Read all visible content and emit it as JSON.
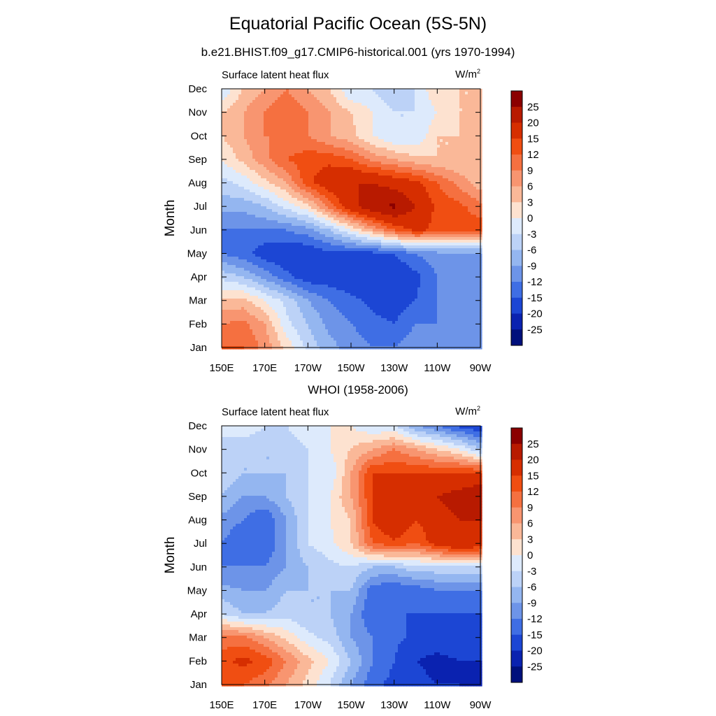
{
  "title": "Equatorial Pacific Ocean (5S-5N)",
  "subtitle": "b.e21.BHIST.f09_g17.CMIP6-historical.001 (yrs 1970-1994)",
  "chart_data": [
    {
      "type": "heatmap",
      "title": "",
      "left_label": "Surface latent heat flux",
      "unit_base": "W/m",
      "unit_sup": "2",
      "ylabel": "Month",
      "xlabel": "",
      "x_tick_labels": [
        "150E",
        "170E",
        "170W",
        "150W",
        "130W",
        "110W",
        "90W"
      ],
      "x_ticks_deg": [
        150,
        170,
        190,
        210,
        230,
        250,
        270
      ],
      "xlim_deg": [
        150,
        270
      ],
      "y_tick_labels": [
        "Jan",
        "Feb",
        "Mar",
        "Apr",
        "May",
        "Jun",
        "Jul",
        "Aug",
        "Sep",
        "Oct",
        "Nov",
        "Dec"
      ],
      "ylim": [
        1,
        12
      ],
      "x_grid_deg": [
        150,
        160,
        170,
        180,
        190,
        200,
        210,
        220,
        230,
        240,
        250,
        260,
        270
      ],
      "y_grid_month": [
        1,
        2,
        3,
        4,
        5,
        6,
        7,
        8,
        9,
        10,
        11,
        12
      ],
      "values": [
        [
          12,
          12,
          8,
          2,
          -4,
          -8,
          -10,
          -12,
          -12,
          -10,
          -10,
          -10,
          -10
        ],
        [
          9,
          10,
          6,
          -2,
          -6,
          -10,
          -12,
          -14,
          -15,
          -12,
          -12,
          -10,
          -10
        ],
        [
          4,
          4,
          0,
          -4,
          -9,
          -12,
          -14,
          -16,
          -17,
          -15,
          -12,
          -10,
          -10
        ],
        [
          -4,
          -6,
          -10,
          -14,
          -17,
          -17,
          -18,
          -20,
          -18,
          -16,
          -12,
          -10,
          -10
        ],
        [
          -12,
          -14,
          -17,
          -18,
          -18,
          -16,
          -16,
          -16,
          -15,
          -12,
          -10,
          -10,
          -10
        ],
        [
          -12,
          -12,
          -12,
          -12,
          -10,
          -6,
          0,
          6,
          12,
          16,
          14,
          14,
          14
        ],
        [
          -8,
          -8,
          -6,
          -2,
          2,
          10,
          18,
          24,
          26,
          20,
          14,
          13,
          10
        ],
        [
          -4,
          -2,
          2,
          6,
          14,
          18,
          20,
          20,
          18,
          16,
          12,
          8,
          4
        ],
        [
          0,
          4,
          8,
          12,
          14,
          14,
          12,
          8,
          6,
          4,
          3,
          3,
          3
        ],
        [
          3,
          6,
          9,
          9,
          9,
          6,
          4,
          0,
          -3,
          -3,
          3,
          3,
          6
        ],
        [
          3,
          6,
          9,
          12,
          9,
          6,
          3,
          0,
          -3,
          -3,
          0,
          3,
          3
        ],
        [
          -3,
          3,
          6,
          9,
          6,
          3,
          -3,
          -3,
          -6,
          -3,
          3,
          3,
          3
        ]
      ],
      "colorbar_labels": [
        "25",
        "20",
        "15",
        "12",
        "9",
        "6",
        "3",
        "0",
        "-3",
        "-6",
        "-9",
        "-12",
        "-15",
        "-20",
        "-25"
      ],
      "colorbar_levels": [
        25,
        20,
        15,
        12,
        9,
        6,
        3,
        0,
        -3,
        -6,
        -9,
        -12,
        -15,
        -20,
        -25
      ],
      "colorbar_colors": [
        "#8b0000",
        "#b81a00",
        "#d62e00",
        "#f04e12",
        "#f57040",
        "#f89570",
        "#fab898",
        "#fde2d0",
        "#ddeafc",
        "#bcd2f7",
        "#94b6f0",
        "#6d94e8",
        "#3f6ee4",
        "#1c46d4",
        "#0a22b0",
        "#00107c"
      ]
    },
    {
      "type": "heatmap",
      "title": "WHOI (1958-2006)",
      "left_label": "Surface latent heat flux",
      "unit_base": "W/m",
      "unit_sup": "2",
      "ylabel": "Month",
      "xlabel": "",
      "x_tick_labels": [
        "150E",
        "170E",
        "170W",
        "150W",
        "130W",
        "110W",
        "90W"
      ],
      "x_ticks_deg": [
        150,
        170,
        190,
        210,
        230,
        250,
        270
      ],
      "xlim_deg": [
        150,
        270
      ],
      "y_tick_labels": [
        "Jan",
        "Feb",
        "Mar",
        "Apr",
        "May",
        "Jun",
        "Jul",
        "Aug",
        "Sep",
        "Oct",
        "Nov",
        "Dec"
      ],
      "ylim": [
        1,
        12
      ],
      "x_grid_deg": [
        150,
        160,
        170,
        180,
        190,
        200,
        210,
        220,
        230,
        240,
        250,
        260,
        270
      ],
      "y_grid_month": [
        1,
        2,
        3,
        4,
        5,
        6,
        7,
        8,
        9,
        10,
        11,
        12
      ],
      "values": [
        [
          12,
          12,
          10,
          6,
          2,
          -3,
          -9,
          -14,
          -16,
          -18,
          -20,
          -20,
          -22
        ],
        [
          14,
          16,
          14,
          9,
          4,
          0,
          -6,
          -12,
          -15,
          -20,
          -22,
          -20,
          -20
        ],
        [
          10,
          10,
          6,
          2,
          -2,
          -4,
          -9,
          -12,
          -14,
          -16,
          -16,
          -16,
          -16
        ],
        [
          -3,
          -6,
          -6,
          -4,
          -6,
          -6,
          -9,
          -15,
          -15,
          -15,
          -15,
          -15,
          -15
        ],
        [
          -8,
          -9,
          -9,
          -6,
          -6,
          -6,
          -6,
          -14,
          -15,
          -14,
          -12,
          -12,
          -12
        ],
        [
          -12,
          -12,
          -12,
          -9,
          -6,
          -4,
          -3,
          -6,
          -6,
          -4,
          -4,
          -3,
          -3
        ],
        [
          -12,
          -15,
          -15,
          -9,
          -3,
          -1,
          3,
          12,
          14,
          12,
          17,
          20,
          18
        ],
        [
          -10,
          -12,
          -15,
          -9,
          -3,
          0,
          3,
          15,
          20,
          15,
          18,
          20,
          20
        ],
        [
          -6,
          -9,
          -9,
          -6,
          -3,
          0,
          6,
          15,
          18,
          15,
          20,
          22,
          25
        ],
        [
          -4,
          -6,
          -6,
          -6,
          -3,
          -3,
          6,
          15,
          15,
          15,
          15,
          15,
          15
        ],
        [
          -3,
          -6,
          -6,
          -6,
          -3,
          0,
          3,
          6,
          9,
          6,
          3,
          0,
          -6
        ],
        [
          -3,
          0,
          -3,
          -3,
          0,
          0,
          0,
          -3,
          -3,
          -9,
          -12,
          -16,
          -18
        ]
      ],
      "colorbar_labels": [
        "25",
        "20",
        "15",
        "12",
        "9",
        "6",
        "3",
        "0",
        "-3",
        "-6",
        "-9",
        "-12",
        "-15",
        "-20",
        "-25"
      ],
      "colorbar_levels": [
        25,
        20,
        15,
        12,
        9,
        6,
        3,
        0,
        -3,
        -6,
        -9,
        -12,
        -15,
        -20,
        -25
      ],
      "colorbar_colors": [
        "#8b0000",
        "#b81a00",
        "#d62e00",
        "#f04e12",
        "#f57040",
        "#f89570",
        "#fab898",
        "#fde2d0",
        "#ddeafc",
        "#bcd2f7",
        "#94b6f0",
        "#6d94e8",
        "#3f6ee4",
        "#1c46d4",
        "#0a22b0",
        "#00107c"
      ]
    }
  ]
}
